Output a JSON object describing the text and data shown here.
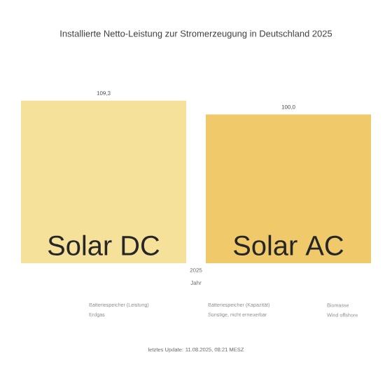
{
  "chart_data": {
    "type": "bar",
    "title": "Installierte Netto-Leistung zur Stromerzeugung in Deutschland 2025",
    "xlabel": "Jahr",
    "categories": [
      "Solar DC",
      "Solar AC"
    ],
    "values": [
      109.3,
      100.0
    ],
    "colors": [
      "#f5e19a",
      "#f0c96a"
    ],
    "value_labels": [
      "109,3",
      "100,0"
    ],
    "annotations": [
      "2025",
      "Batteriespeicher (Leistung)",
      "Erdgas",
      "Batteriespeicher (Kapazität)",
      "Sonstige, nicht erneuerbar",
      "Biomasse",
      "Wind offshore",
      "letztes Update: 11.08.2025, 08:21 MESZ"
    ]
  }
}
